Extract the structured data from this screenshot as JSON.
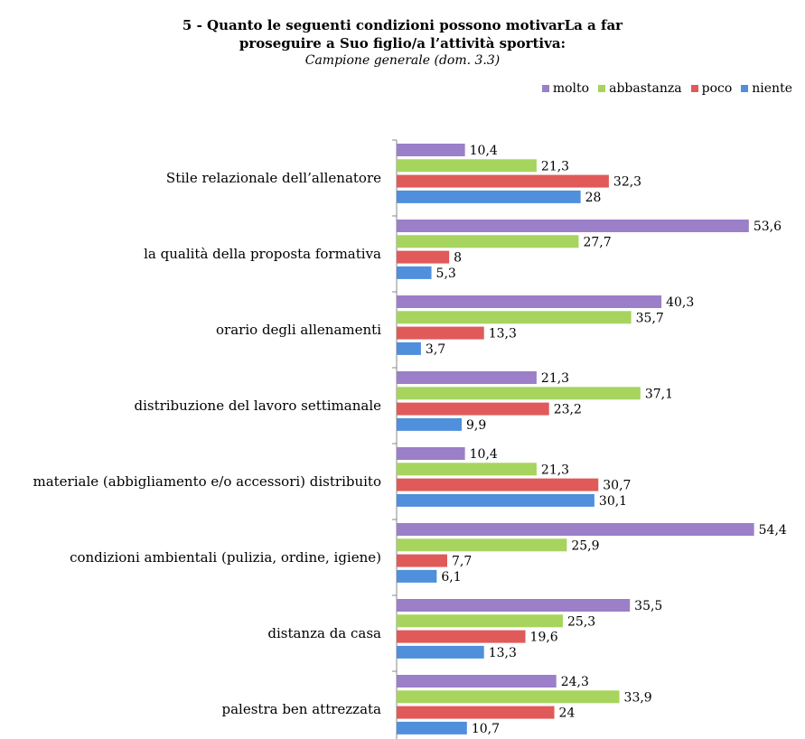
{
  "chart_title_line1": "5 - Quanto le seguenti condizioni possono motivarLa a far",
  "chart_title_line2": "proseguire a Suo figlio/a l’attività sportiva:",
  "chart_subtitle": "Campione generale (dom. 3.3)",
  "chart_data": {
    "type": "bar",
    "orientation": "horizontal",
    "categories": [
      "Stile relazionale dell’allenatore",
      "la qualità della proposta formativa",
      "orario degli allenamenti",
      "distribuzione del lavoro settimanale",
      "materiale (abbigliamento e/o accessori) distribuito",
      "condizioni ambientali (pulizia, ordine, igiene)",
      "distanza da casa",
      "palestra ben attrezzata"
    ],
    "series": [
      {
        "name": "molto",
        "color": "#9b7fc8",
        "values": [
          10.4,
          53.6,
          40.3,
          21.3,
          10.4,
          54.4,
          35.5,
          24.3
        ],
        "labels": [
          "10,4",
          "53,6",
          "40,3",
          "21,3",
          "10,4",
          "54,4",
          "35,5",
          "24,3"
        ]
      },
      {
        "name": "abbastanza",
        "color": "#a6d45e",
        "values": [
          21.3,
          27.7,
          35.7,
          37.1,
          21.3,
          25.9,
          25.3,
          33.9
        ],
        "labels": [
          "21,3",
          "27,7",
          "35,7",
          "37,1",
          "21,3",
          "25,9",
          "25,3",
          "33,9"
        ]
      },
      {
        "name": "poco",
        "color": "#e05a5a",
        "values": [
          32.3,
          8,
          13.3,
          23.2,
          30.7,
          7.7,
          19.6,
          24
        ],
        "labels": [
          "32,3",
          "8",
          "13,3",
          "23,2",
          "30,7",
          "7,7",
          "19,6",
          "24"
        ]
      },
      {
        "name": "niente",
        "color": "#4f8fdc",
        "values": [
          28,
          5.3,
          3.7,
          9.9,
          30.1,
          6.1,
          13.3,
          10.7
        ],
        "labels": [
          "28",
          "5,3",
          "3,7",
          "9,9",
          "30,1",
          "6,1",
          "13,3",
          "10,7"
        ]
      }
    ],
    "xlim": [
      0,
      55
    ],
    "legend_position": "top-right",
    "grid": false
  }
}
